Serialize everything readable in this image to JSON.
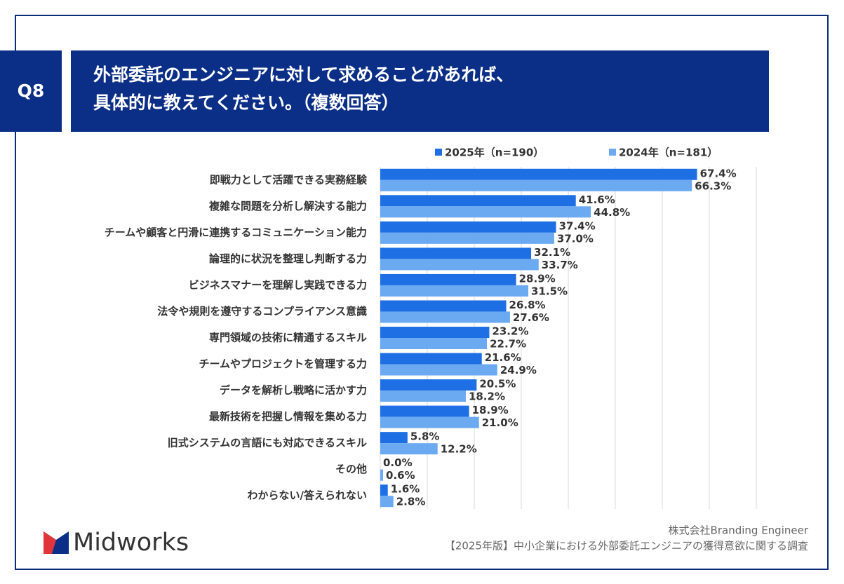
{
  "chart_data": {
    "type": "hbar",
    "label": "Q8",
    "title": [
      "外部委託のエンジニアに対して求めることがあれば、",
      "具体的に教えてください。（複数回答）"
    ],
    "categories": [
      "即戦力として活躍できる実務経験",
      "複雑な問題を分析し解決する能力",
      "チームや顧客と円滑に連携するコミュニケーション能力",
      "論理的に状況を整理し判断する力",
      "ビジネスマナーを理解し実践できる力",
      "法令や規則を遵守するコンプライアンス意識",
      "専門領域の技術に精通するスキル",
      "チームやプロジェクトを管理する力",
      "データを解析し戦略に活かす力",
      "最新技術を把握し情報を集める力",
      "旧式システムの言語にも対応できるスキル",
      "その他",
      "わからない/答えられない"
    ],
    "series": [
      {
        "name": "2025年（n=190）",
        "color": "#1e6fe3",
        "values": [
          67.4,
          41.6,
          37.4,
          32.1,
          28.9,
          26.8,
          23.2,
          21.6,
          20.5,
          18.9,
          5.8,
          0.0,
          1.6
        ],
        "value_labels": [
          "67.4%",
          "41.6%",
          "37.4%",
          "32.1%",
          "28.9%",
          "26.8%",
          "23.2%",
          "21.6%",
          "20.5%",
          "18.9%",
          "5.8%",
          "0.0%",
          "1.6%"
        ]
      },
      {
        "name": "2024年（n=181）",
        "color": "#6baaf1",
        "values": [
          66.3,
          44.8,
          37.0,
          33.7,
          31.5,
          27.6,
          22.7,
          24.9,
          18.2,
          21.0,
          12.2,
          0.6,
          2.8
        ],
        "value_labels": [
          "66.3%",
          "44.8%",
          "37.0%",
          "33.7%",
          "31.5%",
          "27.6%",
          "22.7%",
          "24.9%",
          "18.2%",
          "21.0%",
          "12.2%",
          "0.6%",
          "2.8%"
        ]
      }
    ],
    "xlim": [
      0,
      80
    ],
    "xticks": [
      0,
      10,
      20,
      30,
      40,
      50,
      60,
      70,
      80
    ],
    "grid": true,
    "source": [
      "株式会社Branding Engineer",
      "【2025年版】中小企業における外部委託エンジニアの獲得意欲に関する調査"
    ],
    "logo": "Midworks"
  }
}
